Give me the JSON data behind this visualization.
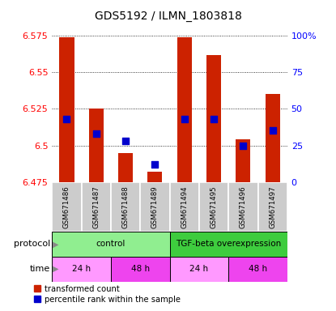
{
  "title": "GDS5192 / ILMN_1803818",
  "samples": [
    "GSM671486",
    "GSM671487",
    "GSM671488",
    "GSM671489",
    "GSM671494",
    "GSM671495",
    "GSM671496",
    "GSM671497"
  ],
  "red_values": [
    6.574,
    6.525,
    6.495,
    6.482,
    6.574,
    6.562,
    6.504,
    6.535
  ],
  "blue_values": [
    6.518,
    6.508,
    6.503,
    6.487,
    6.518,
    6.518,
    6.5,
    6.51
  ],
  "ymin": 6.475,
  "ymax": 6.575,
  "y_ticks": [
    6.475,
    6.5,
    6.525,
    6.55,
    6.575
  ],
  "y2_ticks": [
    0,
    25,
    50,
    75,
    100
  ],
  "proto_groups": [
    {
      "label": "control",
      "start": 0,
      "end": 4,
      "color": "#90EE90"
    },
    {
      "label": "TGF-beta overexpression",
      "start": 4,
      "end": 8,
      "color": "#3ECC3E"
    }
  ],
  "time_groups": [
    {
      "label": "24 h",
      "start": 0,
      "end": 2,
      "color": "#FF99FF"
    },
    {
      "label": "48 h",
      "start": 2,
      "end": 4,
      "color": "#EE44EE"
    },
    {
      "label": "24 h",
      "start": 4,
      "end": 6,
      "color": "#FF99FF"
    },
    {
      "label": "48 h",
      "start": 6,
      "end": 8,
      "color": "#EE44EE"
    }
  ],
  "bar_color": "#CC2200",
  "dot_color": "#0000CC",
  "bar_width": 0.5,
  "dot_size": 35,
  "legend_labels": [
    "transformed count",
    "percentile rank within the sample"
  ],
  "legend_colors": [
    "#CC2200",
    "#0000CC"
  ]
}
